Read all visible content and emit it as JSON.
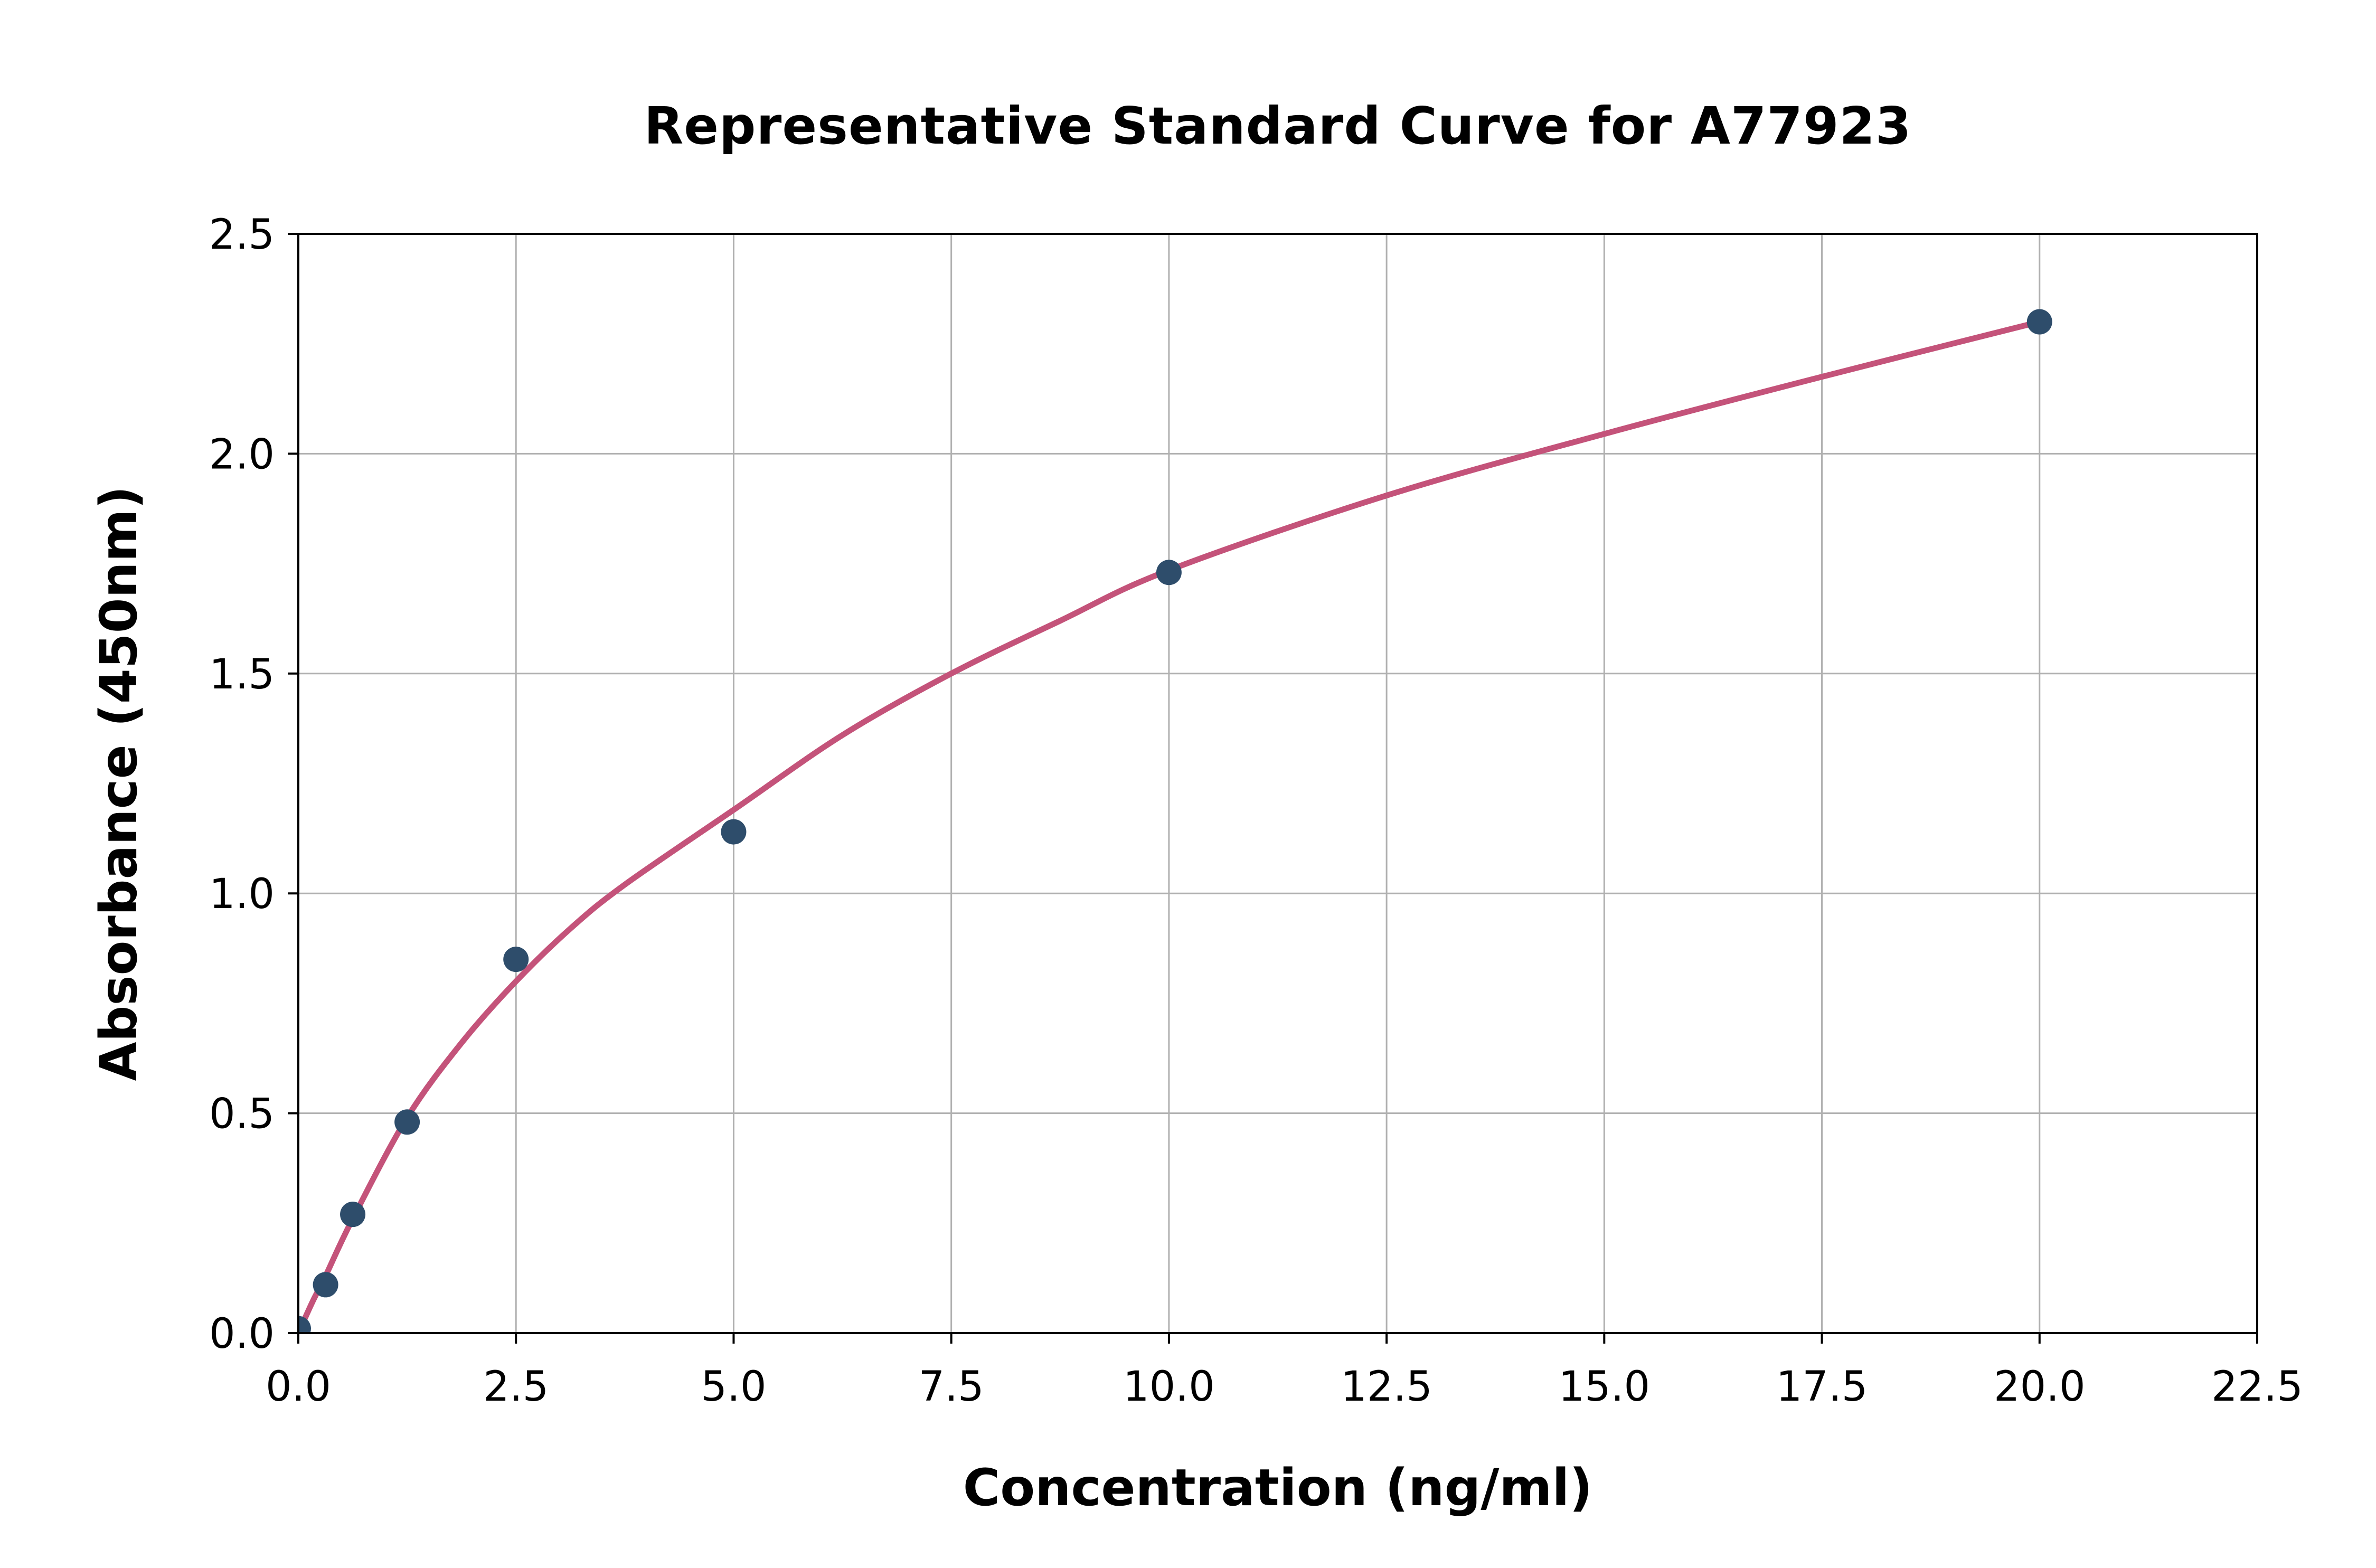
{
  "title": "Representative Standard Curve for A77923",
  "chart_data": {
    "type": "scatter",
    "title": "Representative Standard Curve for A77923",
    "xlabel": "Concentration (ng/ml)",
    "ylabel": "Absorbance (450nm)",
    "xlim": [
      0,
      22.5
    ],
    "ylim": [
      0,
      2.5
    ],
    "x_tick_labels": [
      "0.0",
      "2.5",
      "5.0",
      "7.5",
      "10.0",
      "12.5",
      "15.0",
      "17.5",
      "20.0",
      "22.5"
    ],
    "y_tick_labels": [
      "0.0",
      "0.5",
      "1.0",
      "1.5",
      "2.0",
      "2.5"
    ],
    "grid": true,
    "legend": "none",
    "series": [
      {
        "name": "standards",
        "type": "scatter",
        "x": [
          0,
          0.313,
          0.625,
          1.25,
          2.5,
          5,
          10,
          20
        ],
        "y": [
          0.01,
          0.11,
          0.27,
          0.48,
          0.85,
          1.14,
          1.73,
          2.3
        ]
      },
      {
        "name": "fit-curve",
        "type": "line",
        "x": [
          0,
          0.16,
          0.313,
          0.625,
          1.25,
          1.875,
          2.5,
          3.125,
          3.75,
          5,
          6.25,
          7.5,
          8.75,
          10,
          12.5,
          15,
          17.5,
          20
        ],
        "y": [
          0,
          0.07,
          0.13,
          0.26,
          0.49,
          0.66,
          0.8,
          0.92,
          1.02,
          1.19,
          1.36,
          1.5,
          1.62,
          1.735,
          1.905,
          2.045,
          2.175,
          2.3
        ]
      }
    ],
    "colors": {
      "marker": "#2e4d6b",
      "curve": "#c4537a",
      "grid": "#b0b0b0",
      "axis": "#000000",
      "background": "#ffffff"
    }
  }
}
